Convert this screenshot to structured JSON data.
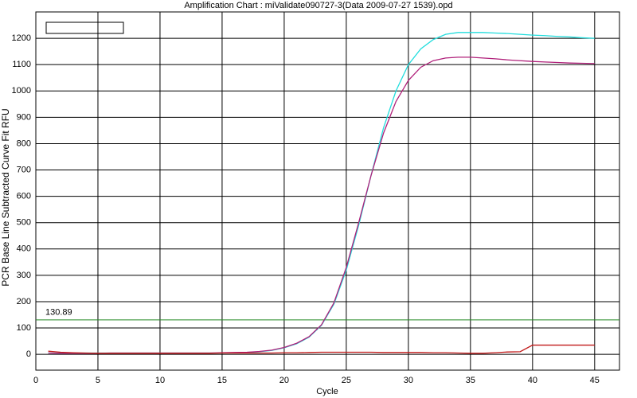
{
  "chart_data": {
    "type": "line",
    "title": "Amplification Chart : miValidate090727-3(Data 2009-07-27 1539).opd",
    "x_label": "Cycle",
    "y_label": "PCR Base Line Subtracted Curve Fit RFU",
    "x": [
      1,
      2,
      3,
      4,
      5,
      6,
      7,
      8,
      9,
      10,
      11,
      12,
      13,
      14,
      15,
      16,
      17,
      18,
      19,
      20,
      21,
      22,
      23,
      24,
      25,
      26,
      27,
      28,
      29,
      30,
      31,
      32,
      33,
      34,
      35,
      36,
      37,
      38,
      39,
      40,
      41,
      42,
      43,
      44,
      45
    ],
    "series": [
      {
        "name": "cyan",
        "color": "#22dddd",
        "values": [
          5,
          5,
          5,
          5,
          5,
          5,
          5,
          5,
          5,
          5,
          5,
          5,
          5,
          5,
          5,
          6,
          7,
          10,
          15,
          25,
          40,
          65,
          110,
          190,
          320,
          490,
          680,
          860,
          1000,
          1100,
          1160,
          1195,
          1215,
          1222,
          1222,
          1222,
          1220,
          1218,
          1215,
          1212,
          1210,
          1207,
          1205,
          1202,
          1200
        ]
      },
      {
        "name": "magenta",
        "color": "#b0207a",
        "values": [
          5,
          4,
          4,
          4,
          4,
          5,
          5,
          5,
          5,
          5,
          5,
          5,
          5,
          5,
          6,
          7,
          8,
          11,
          16,
          26,
          42,
          67,
          112,
          195,
          330,
          500,
          680,
          840,
          960,
          1040,
          1090,
          1115,
          1125,
          1128,
          1128,
          1125,
          1122,
          1118,
          1115,
          1112,
          1110,
          1108,
          1106,
          1105,
          1104
        ]
      },
      {
        "name": "red",
        "color": "#c01818",
        "values": [
          12,
          8,
          6,
          5,
          4,
          4,
          4,
          4,
          4,
          4,
          4,
          4,
          4,
          4,
          5,
          5,
          5,
          5,
          5,
          6,
          6,
          7,
          8,
          8,
          8,
          8,
          8,
          7,
          7,
          7,
          7,
          6,
          6,
          5,
          4,
          4,
          6,
          9,
          10,
          35,
          35,
          35,
          35,
          35,
          35
        ]
      }
    ],
    "threshold": 130.89,
    "threshold_color": "#228822",
    "xlim": [
      0,
      47
    ],
    "xticks": [
      0,
      5,
      10,
      15,
      20,
      25,
      30,
      35,
      40,
      45
    ],
    "ylim": [
      -60,
      1300
    ],
    "yticks": [
      0,
      100,
      200,
      300,
      400,
      500,
      600,
      700,
      800,
      900,
      1000,
      1100,
      1200
    ],
    "grid": true
  }
}
